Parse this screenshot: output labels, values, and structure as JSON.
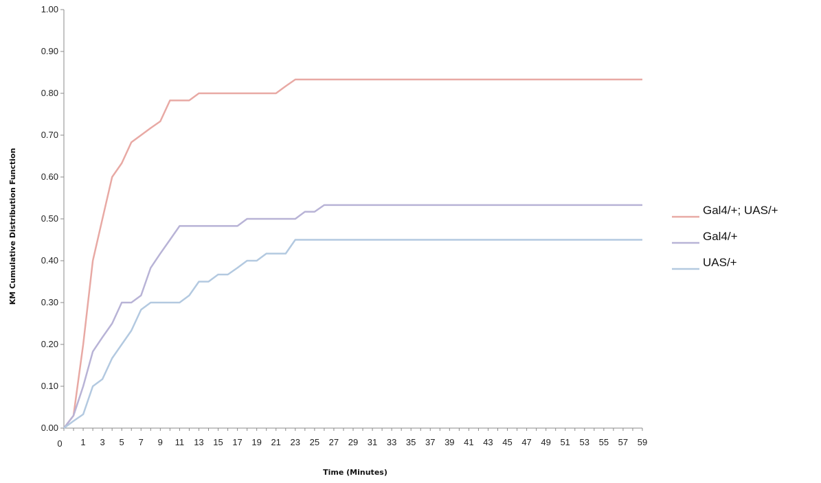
{
  "chart_data": {
    "type": "line",
    "xlabel": "Time (Minutes)",
    "ylabel": "KM Cumulative  Distribution  Function",
    "xlim": [
      0,
      60
    ],
    "ylim": [
      0,
      1
    ],
    "yticks": [
      "0.00",
      "0.10",
      "0.20",
      "0.30",
      "0.40",
      "0.50",
      "0.60",
      "0.70",
      "0.80",
      "0.90",
      "1.00"
    ],
    "xticks": [
      "0",
      "1",
      "3",
      "5",
      "7",
      "9",
      "11",
      "13",
      "15",
      "17",
      "19",
      "21",
      "23",
      "25",
      "27",
      "29",
      "31",
      "33",
      "35",
      "37",
      "39",
      "41",
      "43",
      "45",
      "47",
      "49",
      "51",
      "53",
      "55",
      "57",
      "59"
    ],
    "grid": false,
    "legend_position": "right",
    "series": [
      {
        "name": "Gal4/+; UAS/+",
        "color": "#e8a9a4",
        "x": [
          0,
          1,
          2,
          3,
          4,
          5,
          6,
          7,
          8,
          9,
          10,
          11,
          12,
          13,
          14,
          22,
          23,
          24,
          60
        ],
        "y": [
          0,
          0.03,
          0.2,
          0.4,
          0.5,
          0.6,
          0.633,
          0.683,
          0.7,
          0.717,
          0.733,
          0.783,
          0.783,
          0.783,
          0.8,
          0.8,
          0.817,
          0.833,
          0.833
        ]
      },
      {
        "name": "Gal4/+",
        "color": "#b8b3d6",
        "x": [
          0,
          1,
          2,
          3,
          4,
          5,
          6,
          7,
          8,
          9,
          10,
          11,
          12,
          18,
          19,
          20,
          23,
          24,
          25,
          26,
          27,
          60
        ],
        "y": [
          0,
          0.03,
          0.1,
          0.183,
          0.217,
          0.25,
          0.3,
          0.3,
          0.317,
          0.383,
          0.417,
          0.45,
          0.483,
          0.483,
          0.5,
          0.5,
          0.5,
          0.5,
          0.517,
          0.517,
          0.533,
          0.533
        ]
      },
      {
        "name": "UAS/+",
        "color": "#b3c9e0",
        "x": [
          0,
          1,
          2,
          3,
          4,
          5,
          6,
          7,
          8,
          9,
          10,
          11,
          12,
          13,
          14,
          15,
          16,
          17,
          18,
          19,
          20,
          21,
          22,
          23,
          24,
          60
        ],
        "y": [
          0,
          0.017,
          0.033,
          0.1,
          0.117,
          0.167,
          0.2,
          0.233,
          0.283,
          0.3,
          0.3,
          0.3,
          0.3,
          0.317,
          0.35,
          0.35,
          0.367,
          0.367,
          0.383,
          0.4,
          0.4,
          0.417,
          0.417,
          0.417,
          0.45,
          0.45
        ]
      }
    ]
  }
}
